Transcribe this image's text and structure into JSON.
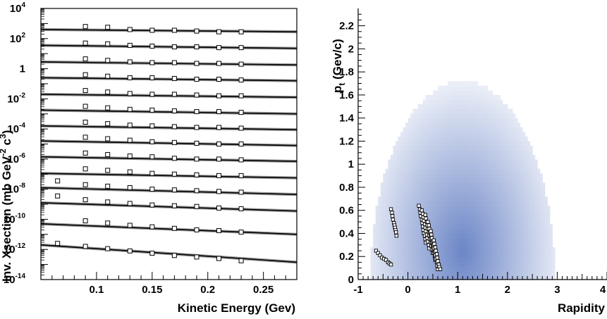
{
  "chart_data": [
    {
      "type": "scatter",
      "title": "",
      "xlabel": "Kinetic Energy (Gev)",
      "ylabel_parts": [
        "Inv. Xsection  (mb GeV",
        "-2",
        " c",
        "3",
        ")"
      ],
      "xlim": [
        0.05,
        0.28
      ],
      "ylim_log10": [
        -14,
        4
      ],
      "yscale": "log",
      "x_ticks": [
        0.1,
        0.15,
        0.2,
        0.25
      ],
      "x_tick_labels": [
        "0.1",
        "0.15",
        "0.2",
        "0.25"
      ],
      "y_tick_labels": [
        {
          "log": 4,
          "base": "10",
          "exp": "4"
        },
        {
          "log": 2,
          "base": "10",
          "exp": "2"
        },
        {
          "log": 0,
          "base": "1",
          "exp": ""
        },
        {
          "log": -2,
          "base": "10",
          "exp": "-2"
        },
        {
          "log": -4,
          "base": "10",
          "exp": "-4"
        },
        {
          "log": -6,
          "base": "10",
          "exp": "-6"
        },
        {
          "log": -8,
          "base": "10",
          "exp": "-8"
        },
        {
          "log": -10,
          "base": "10",
          "exp": "-10"
        },
        {
          "log": -12,
          "base": "10",
          "exp": "-12"
        },
        {
          "log": -14,
          "base": "10",
          "exp": "-14"
        }
      ],
      "series": [
        {
          "log10_at_0_05": 2.6,
          "log10_at_0_28": 2.45,
          "points": [
            [
              0.09,
              2.8
            ],
            [
              0.11,
              2.75
            ],
            [
              0.13,
              2.6
            ],
            [
              0.15,
              2.55
            ],
            [
              0.17,
              2.55
            ],
            [
              0.19,
              2.5
            ],
            [
              0.21,
              2.45
            ],
            [
              0.23,
              2.45
            ]
          ]
        },
        {
          "log10_at_0_05": 1.55,
          "log10_at_0_28": 1.35,
          "points": [
            [
              0.09,
              1.7
            ],
            [
              0.11,
              1.65
            ],
            [
              0.13,
              1.55
            ],
            [
              0.15,
              1.5
            ],
            [
              0.17,
              1.45
            ],
            [
              0.19,
              1.45
            ],
            [
              0.21,
              1.4
            ],
            [
              0.23,
              1.4
            ]
          ]
        },
        {
          "log10_at_0_05": 0.45,
          "log10_at_0_28": 0.25,
          "points": [
            [
              0.09,
              0.65
            ],
            [
              0.11,
              0.55
            ],
            [
              0.13,
              0.45
            ],
            [
              0.15,
              0.4
            ],
            [
              0.17,
              0.4
            ],
            [
              0.19,
              0.35
            ],
            [
              0.21,
              0.35
            ],
            [
              0.23,
              0.3
            ]
          ]
        },
        {
          "log10_at_0_05": -0.6,
          "log10_at_0_28": -0.8,
          "points": [
            [
              0.09,
              -0.4
            ],
            [
              0.11,
              -0.5
            ],
            [
              0.13,
              -0.6
            ],
            [
              0.15,
              -0.6
            ],
            [
              0.17,
              -0.65
            ],
            [
              0.19,
              -0.7
            ],
            [
              0.21,
              -0.7
            ],
            [
              0.23,
              -0.75
            ]
          ]
        },
        {
          "log10_at_0_05": -1.7,
          "log10_at_0_28": -1.9,
          "points": [
            [
              0.09,
              -1.45
            ],
            [
              0.11,
              -1.55
            ],
            [
              0.13,
              -1.65
            ],
            [
              0.15,
              -1.7
            ],
            [
              0.17,
              -1.7
            ],
            [
              0.19,
              -1.75
            ],
            [
              0.21,
              -1.8
            ],
            [
              0.23,
              -1.8
            ]
          ]
        },
        {
          "log10_at_0_05": -2.75,
          "log10_at_0_28": -3.0,
          "points": [
            [
              0.09,
              -2.5
            ],
            [
              0.11,
              -2.6
            ],
            [
              0.13,
              -2.7
            ],
            [
              0.15,
              -2.75
            ],
            [
              0.17,
              -2.8
            ],
            [
              0.19,
              -2.85
            ],
            [
              0.21,
              -2.85
            ],
            [
              0.23,
              -2.9
            ]
          ]
        },
        {
          "log10_at_0_05": -3.8,
          "log10_at_0_28": -4.05,
          "points": [
            [
              0.09,
              -3.55
            ],
            [
              0.11,
              -3.65
            ],
            [
              0.13,
              -3.75
            ],
            [
              0.15,
              -3.8
            ],
            [
              0.17,
              -3.85
            ],
            [
              0.19,
              -3.9
            ],
            [
              0.21,
              -3.9
            ],
            [
              0.23,
              -3.95
            ]
          ]
        },
        {
          "log10_at_0_05": -4.8,
          "log10_at_0_28": -5.1,
          "points": [
            [
              0.09,
              -4.55
            ],
            [
              0.11,
              -4.65
            ],
            [
              0.13,
              -4.75
            ],
            [
              0.15,
              -4.85
            ],
            [
              0.17,
              -4.9
            ],
            [
              0.19,
              -4.95
            ],
            [
              0.21,
              -5.0
            ],
            [
              0.23,
              -5.0
            ]
          ]
        },
        {
          "log10_at_0_05": -5.85,
          "log10_at_0_28": -6.15,
          "points": [
            [
              0.09,
              -5.6
            ],
            [
              0.11,
              -5.7
            ],
            [
              0.13,
              -5.8
            ],
            [
              0.15,
              -5.85
            ],
            [
              0.17,
              -5.95
            ],
            [
              0.19,
              -6.0
            ],
            [
              0.21,
              -6.0
            ],
            [
              0.23,
              -6.05
            ]
          ]
        },
        {
          "log10_at_0_05": -6.95,
          "log10_at_0_28": -7.25,
          "points": [
            [
              0.09,
              -6.65
            ],
            [
              0.11,
              -6.75
            ],
            [
              0.13,
              -6.85
            ],
            [
              0.15,
              -6.95
            ],
            [
              0.17,
              -7.0
            ],
            [
              0.19,
              -7.05
            ],
            [
              0.21,
              -7.1
            ],
            [
              0.23,
              -7.1
            ]
          ]
        },
        {
          "log10_at_0_05": -7.9,
          "log10_at_0_28": -8.35,
          "points": [
            [
              0.065,
              -7.45
            ],
            [
              0.09,
              -7.7
            ],
            [
              0.11,
              -7.8
            ],
            [
              0.13,
              -7.9
            ],
            [
              0.15,
              -8.0
            ],
            [
              0.17,
              -8.05
            ],
            [
              0.19,
              -8.1
            ],
            [
              0.21,
              -8.15
            ],
            [
              0.23,
              -8.2
            ]
          ]
        },
        {
          "log10_at_0_05": -8.9,
          "log10_at_0_28": -9.45,
          "points": [
            [
              0.065,
              -8.45
            ],
            [
              0.09,
              -8.7
            ],
            [
              0.11,
              -8.85
            ],
            [
              0.13,
              -8.95
            ],
            [
              0.15,
              -9.05
            ],
            [
              0.17,
              -9.1
            ],
            [
              0.19,
              -9.15
            ],
            [
              0.21,
              -9.25
            ],
            [
              0.23,
              -9.3
            ]
          ]
        },
        {
          "log10_at_0_05": -10.3,
          "log10_at_0_28": -11.0,
          "points": [
            [
              0.09,
              -10.1
            ],
            [
              0.11,
              -10.25
            ],
            [
              0.13,
              -10.4
            ],
            [
              0.15,
              -10.5
            ],
            [
              0.17,
              -10.6
            ],
            [
              0.19,
              -10.7
            ],
            [
              0.21,
              -10.75
            ],
            [
              0.23,
              -10.85
            ]
          ]
        },
        {
          "log10_at_0_05": -11.7,
          "log10_at_0_28": -12.85,
          "points": [
            [
              0.065,
              -11.6
            ],
            [
              0.09,
              -11.8
            ],
            [
              0.11,
              -11.95
            ],
            [
              0.13,
              -12.1
            ],
            [
              0.15,
              -12.25
            ],
            [
              0.17,
              -12.4
            ],
            [
              0.19,
              -12.5
            ],
            [
              0.21,
              -12.6
            ],
            [
              0.23,
              -12.75
            ]
          ]
        }
      ],
      "line_color": "#000000"
    },
    {
      "type": "heatmap",
      "title": "",
      "xlabel": "Rapidity",
      "ylabel_main": "p",
      "ylabel_sub": "t",
      "ylabel_rest": " (Gev/c)",
      "xlim": [
        -1,
        4
      ],
      "ylim": [
        0,
        2.35
      ],
      "x_ticks": [
        -1,
        0,
        1,
        2,
        3,
        4
      ],
      "x_tick_labels": [
        "-1",
        "0",
        "1",
        "2",
        "3",
        "4"
      ],
      "y_ticks": [
        0,
        0.2,
        0.4,
        0.6,
        0.8,
        1,
        1.2,
        1.4,
        1.6,
        1.8,
        2,
        2.2
      ],
      "y_tick_labels": [
        "0",
        "0.2",
        "0.4",
        "0.6",
        "0.8",
        "1",
        "1.2",
        "1.4",
        "1.6",
        "1.8",
        "2",
        "2.2"
      ],
      "colormap": {
        "low": "#ffffff",
        "high": "#5b78c0"
      },
      "density": {
        "center_y": 1.1,
        "center_pt": 0.25,
        "y_min": -0.75,
        "y_max": 2.95,
        "pt_max": 1.72,
        "peak": 0.85
      },
      "marker_groups": [
        {
          "y": [
            -0.64,
            -0.6,
            -0.56,
            -0.52,
            -0.48,
            -0.44,
            -0.4,
            -0.37,
            -0.34
          ],
          "pt": [
            0.25,
            0.23,
            0.21,
            0.19,
            0.18,
            0.17,
            0.15,
            0.14,
            0.13
          ]
        },
        {
          "y": [
            -0.34,
            -0.32,
            -0.31,
            -0.3,
            -0.28,
            -0.27,
            -0.26,
            -0.25,
            -0.24,
            -0.23
          ],
          "pt": [
            0.61,
            0.58,
            0.55,
            0.52,
            0.49,
            0.47,
            0.45,
            0.43,
            0.41,
            0.38
          ]
        },
        {
          "y": [
            0.22,
            0.24,
            0.25,
            0.26,
            0.28,
            0.29,
            0.3,
            0.31,
            0.32,
            0.34,
            0.35,
            0.36
          ],
          "pt": [
            0.64,
            0.61,
            0.58,
            0.55,
            0.52,
            0.49,
            0.46,
            0.43,
            0.4,
            0.38,
            0.35,
            0.32
          ]
        },
        {
          "y": [
            0.28,
            0.3,
            0.31,
            0.32,
            0.34,
            0.35,
            0.36,
            0.38,
            0.39,
            0.4,
            0.42,
            0.43
          ],
          "pt": [
            0.6,
            0.57,
            0.54,
            0.51,
            0.48,
            0.45,
            0.42,
            0.39,
            0.36,
            0.33,
            0.3,
            0.27
          ]
        },
        {
          "y": [
            0.35,
            0.36,
            0.38,
            0.39,
            0.4,
            0.42,
            0.43,
            0.44,
            0.46,
            0.47,
            0.48,
            0.5
          ],
          "pt": [
            0.56,
            0.53,
            0.5,
            0.47,
            0.44,
            0.41,
            0.38,
            0.35,
            0.32,
            0.29,
            0.26,
            0.23
          ]
        },
        {
          "y": [
            0.4,
            0.42,
            0.43,
            0.44,
            0.46,
            0.47,
            0.48,
            0.5,
            0.51,
            0.52,
            0.54,
            0.55
          ],
          "pt": [
            0.5,
            0.47,
            0.44,
            0.41,
            0.38,
            0.35,
            0.32,
            0.29,
            0.26,
            0.23,
            0.2,
            0.17
          ]
        },
        {
          "y": [
            0.46,
            0.47,
            0.48,
            0.5,
            0.51,
            0.52,
            0.54,
            0.55,
            0.56,
            0.58,
            0.59,
            0.6
          ],
          "pt": [
            0.42,
            0.39,
            0.36,
            0.33,
            0.3,
            0.27,
            0.24,
            0.21,
            0.18,
            0.15,
            0.12,
            0.09
          ]
        },
        {
          "y": [
            0.52,
            0.53,
            0.55,
            0.56,
            0.58,
            0.59,
            0.6,
            0.62,
            0.63,
            0.65
          ],
          "pt": [
            0.34,
            0.31,
            0.28,
            0.25,
            0.22,
            0.19,
            0.16,
            0.13,
            0.11,
            0.09
          ]
        }
      ]
    }
  ]
}
